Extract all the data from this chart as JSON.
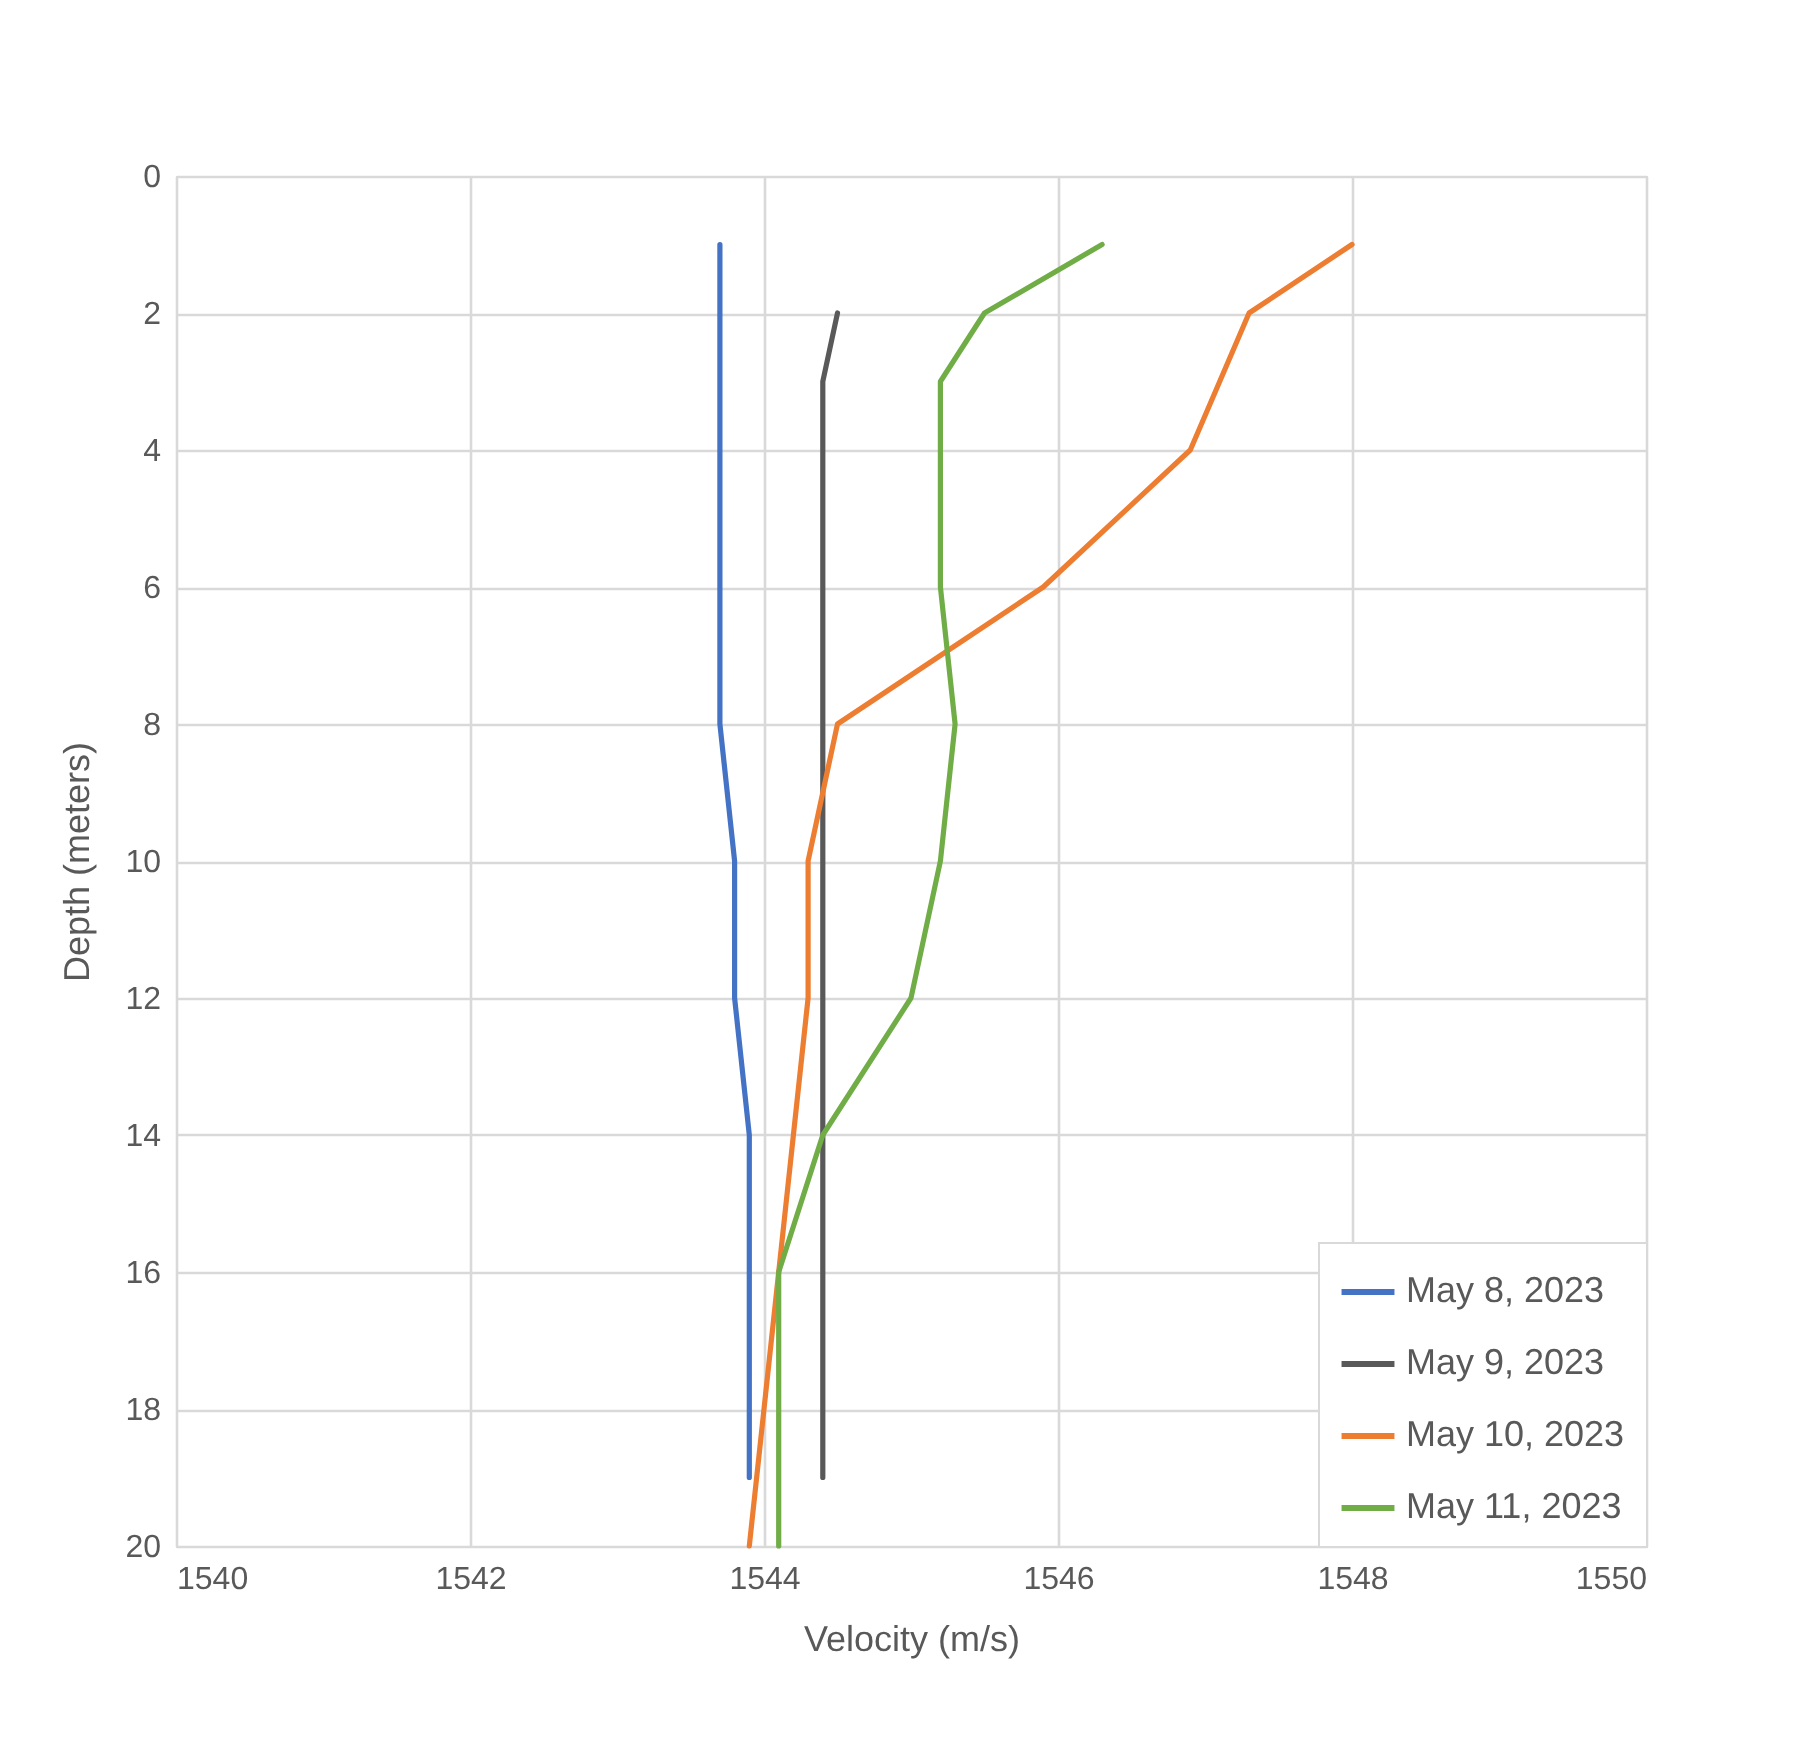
{
  "chart_data": {
    "type": "line",
    "xlabel": "Velocity (m/s)",
    "ylabel": "Depth (meters)",
    "xlim": [
      1540,
      1550
    ],
    "xticks": [
      1540,
      1542,
      1544,
      1546,
      1548,
      1550
    ],
    "ylim": [
      20,
      0
    ],
    "yticks": [
      0,
      2,
      4,
      6,
      8,
      10,
      12,
      14,
      16,
      18,
      20
    ],
    "grid": true,
    "legend": "bottom right",
    "marker": "none",
    "line_style": "solid",
    "series": [
      {
        "name": "May 8, 2023",
        "color": "#4472c4",
        "x": [
          1543.7,
          1543.7,
          1543.8,
          1543.8,
          1543.9,
          1543.9
        ],
        "values": [
          1,
          8,
          10,
          12,
          14,
          19
        ]
      },
      {
        "name": "May 9, 2023",
        "color": "#595959",
        "x": [
          1544.5,
          1544.4,
          1544.4
        ],
        "values": [
          2,
          3,
          19
        ]
      },
      {
        "name": "May 10, 2023",
        "color": "#ed7d31",
        "x": [
          1548.0,
          1547.3,
          1547.1,
          1546.9,
          1545.9,
          1544.5,
          1544.3,
          1544.3,
          1544.2,
          1544.1,
          1543.9
        ],
        "values": [
          1,
          2,
          3,
          4,
          6,
          8,
          10,
          12,
          14,
          16,
          20
        ]
      },
      {
        "name": "May 11, 2023",
        "color": "#70ad47",
        "x": [
          1546.3,
          1545.5,
          1545.2,
          1545.2,
          1545.3,
          1545.2,
          1545.0,
          1544.4,
          1544.1,
          1544.1
        ],
        "values": [
          1,
          2,
          3,
          6,
          8,
          10,
          12,
          14,
          16,
          20
        ]
      }
    ]
  }
}
